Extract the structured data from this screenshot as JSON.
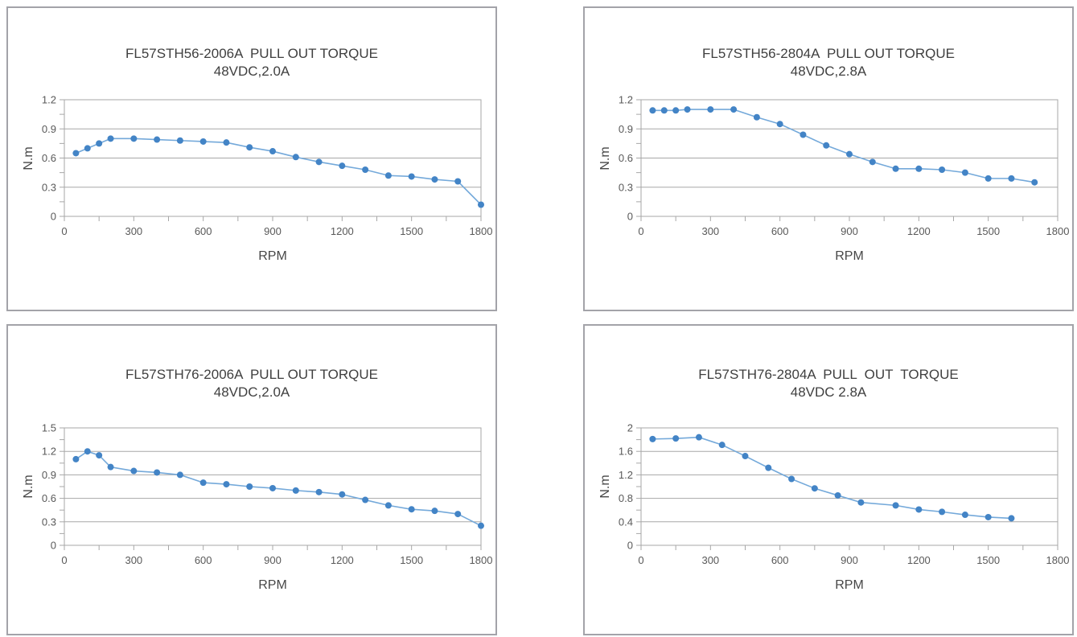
{
  "page": {
    "background_color": "#ffffff",
    "panel_border_color": "#a3a3a9",
    "grid_color": "#a7a7a7",
    "tick_label_color": "#595959",
    "title_color": "#3f3f3f"
  },
  "chart_data": [
    {
      "id": "fl57sth56-2006a",
      "type": "line",
      "title_line1": "FL57STH56-2006A  PULL OUT TORQUE",
      "title_line2": "48VDC,2.0A",
      "xlabel": "RPM",
      "ylabel": "N.m",
      "xlim": [
        0,
        1800
      ],
      "ylim": [
        0,
        1.2
      ],
      "xticks": [
        0,
        300,
        600,
        900,
        1200,
        1500,
        1800
      ],
      "yticks": [
        0,
        0.3,
        0.6,
        0.9,
        1.2
      ],
      "x_minor_step": 150,
      "y_minor_step": 0.15,
      "grid": true,
      "legend": null,
      "x": [
        50,
        100,
        150,
        200,
        300,
        400,
        500,
        600,
        700,
        800,
        900,
        1000,
        1100,
        1200,
        1300,
        1400,
        1500,
        1600,
        1700,
        1800
      ],
      "y": [
        0.65,
        0.7,
        0.75,
        0.8,
        0.8,
        0.79,
        0.78,
        0.77,
        0.76,
        0.71,
        0.67,
        0.61,
        0.56,
        0.52,
        0.48,
        0.42,
        0.41,
        0.38,
        0.36,
        0.12
      ],
      "line_color": "#74a9da",
      "marker_color": "#4384c6"
    },
    {
      "id": "fl57sth56-2804a",
      "type": "line",
      "title_line1": "FL57STH56-2804A  PULL OUT TORQUE",
      "title_line2": "48VDC,2.8A",
      "xlabel": "RPM",
      "ylabel": "N.m",
      "xlim": [
        0,
        1800
      ],
      "ylim": [
        0,
        1.2
      ],
      "xticks": [
        0,
        300,
        600,
        900,
        1200,
        1500,
        1800
      ],
      "yticks": [
        0,
        0.3,
        0.6,
        0.9,
        1.2
      ],
      "x_minor_step": 150,
      "y_minor_step": 0.15,
      "grid": true,
      "legend": null,
      "x": [
        50,
        100,
        150,
        200,
        300,
        400,
        500,
        600,
        700,
        800,
        900,
        1000,
        1100,
        1200,
        1300,
        1400,
        1500,
        1600,
        1700
      ],
      "y": [
        1.09,
        1.09,
        1.09,
        1.1,
        1.1,
        1.1,
        1.02,
        0.95,
        0.84,
        0.73,
        0.64,
        0.56,
        0.49,
        0.49,
        0.48,
        0.45,
        0.39,
        0.39,
        0.35
      ],
      "line_color": "#74a9da",
      "marker_color": "#4384c6"
    },
    {
      "id": "fl57sth76-2006a",
      "type": "line",
      "title_line1": "FL57STH76-2006A  PULL OUT TORQUE",
      "title_line2": "48VDC,2.0A",
      "xlabel": "RPM",
      "ylabel": "N.m",
      "xlim": [
        0,
        1800
      ],
      "ylim": [
        0,
        1.5
      ],
      "xticks": [
        0,
        300,
        600,
        900,
        1200,
        1500,
        1800
      ],
      "yticks": [
        0,
        0.3,
        0.6,
        0.9,
        1.2,
        1.5
      ],
      "x_minor_step": 150,
      "y_minor_step": 0.15,
      "grid": true,
      "legend": null,
      "x": [
        50,
        100,
        150,
        200,
        300,
        400,
        500,
        600,
        700,
        800,
        900,
        1000,
        1100,
        1200,
        1300,
        1400,
        1500,
        1600,
        1700,
        1800
      ],
      "y": [
        1.1,
        1.2,
        1.15,
        1.0,
        0.95,
        0.93,
        0.9,
        0.8,
        0.78,
        0.75,
        0.73,
        0.7,
        0.68,
        0.65,
        0.58,
        0.51,
        0.46,
        0.44,
        0.4,
        0.25
      ],
      "line_color": "#74a9da",
      "marker_color": "#4384c6"
    },
    {
      "id": "fl57sth76-2804a",
      "type": "line",
      "title_line1": "FL57STH76-2804A  PULL  OUT  TORQUE",
      "title_line2": "48VDC 2.8A",
      "xlabel": "RPM",
      "ylabel": "N.m",
      "xlim": [
        0,
        1800
      ],
      "ylim": [
        0,
        2
      ],
      "xticks": [
        0,
        300,
        600,
        900,
        1200,
        1500,
        1800
      ],
      "yticks": [
        0,
        0.4,
        0.8,
        1.2,
        1.6,
        2
      ],
      "x_minor_step": 150,
      "y_minor_step": 0.2,
      "grid": true,
      "legend": null,
      "x": [
        50,
        150,
        250,
        350,
        450,
        550,
        650,
        750,
        850,
        950,
        1100,
        1200,
        1300,
        1400,
        1500,
        1600
      ],
      "y": [
        1.81,
        1.82,
        1.84,
        1.71,
        1.52,
        1.32,
        1.13,
        0.97,
        0.85,
        0.73,
        0.68,
        0.61,
        0.57,
        0.52,
        0.48,
        0.46
      ],
      "line_color": "#74a9da",
      "marker_color": "#4384c6"
    }
  ]
}
